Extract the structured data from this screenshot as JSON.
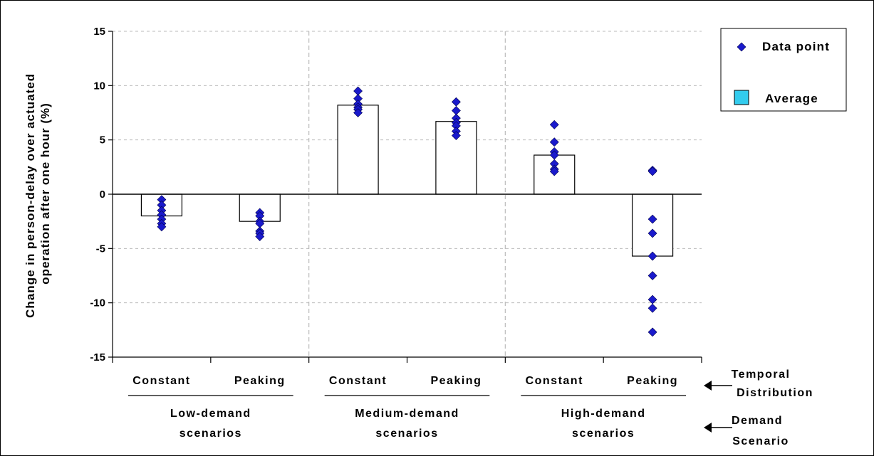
{
  "chart_data": {
    "type": "bar",
    "ylabel_lines": [
      "Change in person-delay over actuated",
      "operation after one hour (%)"
    ],
    "ylim": [
      -15,
      15
    ],
    "yticks": [
      15,
      10,
      5,
      0,
      -5,
      -10,
      -15
    ],
    "grid": true,
    "legend_position": "top-right",
    "legend": {
      "points_label": "Data point",
      "average_label": "Average"
    },
    "colors": {
      "points": "#1a1acc",
      "average_swatch": "#33ccee",
      "bar_fill": "#ffffff",
      "grid": "#bbbbbb"
    },
    "categories": [
      "Constant",
      "Peaking",
      "Constant",
      "Peaking",
      "Constant",
      "Peaking"
    ],
    "groups": [
      {
        "label_lines": [
          "Low-demand",
          "scenarios"
        ]
      },
      {
        "label_lines": [
          "Medium-demand",
          "scenarios"
        ]
      },
      {
        "label_lines": [
          "High-demand",
          "scenarios"
        ]
      }
    ],
    "averages": [
      -2.0,
      -2.5,
      8.2,
      6.7,
      3.6,
      -5.7
    ],
    "points": [
      [
        -0.5,
        -1.0,
        -1.5,
        -1.9,
        -2.3,
        -2.7,
        -3.0
      ],
      [
        -1.7,
        -2.0,
        -2.5,
        -2.7,
        -3.4,
        -3.6,
        -3.9
      ],
      [
        9.5,
        8.8,
        8.3,
        8.0,
        7.8,
        7.5
      ],
      [
        8.5,
        7.7,
        7.0,
        6.6,
        6.3,
        5.8,
        5.4
      ],
      [
        6.4,
        4.8,
        3.9,
        3.6,
        2.8,
        2.3,
        2.1
      ],
      [
        2.2,
        2.1,
        -2.3,
        -3.6,
        -5.7,
        -7.5,
        -9.7,
        -10.5,
        -12.7
      ]
    ],
    "annotations": [
      {
        "label_lines": [
          "Temporal",
          "Distribution"
        ]
      },
      {
        "label_lines": [
          "Demand",
          "Scenario"
        ]
      }
    ]
  }
}
